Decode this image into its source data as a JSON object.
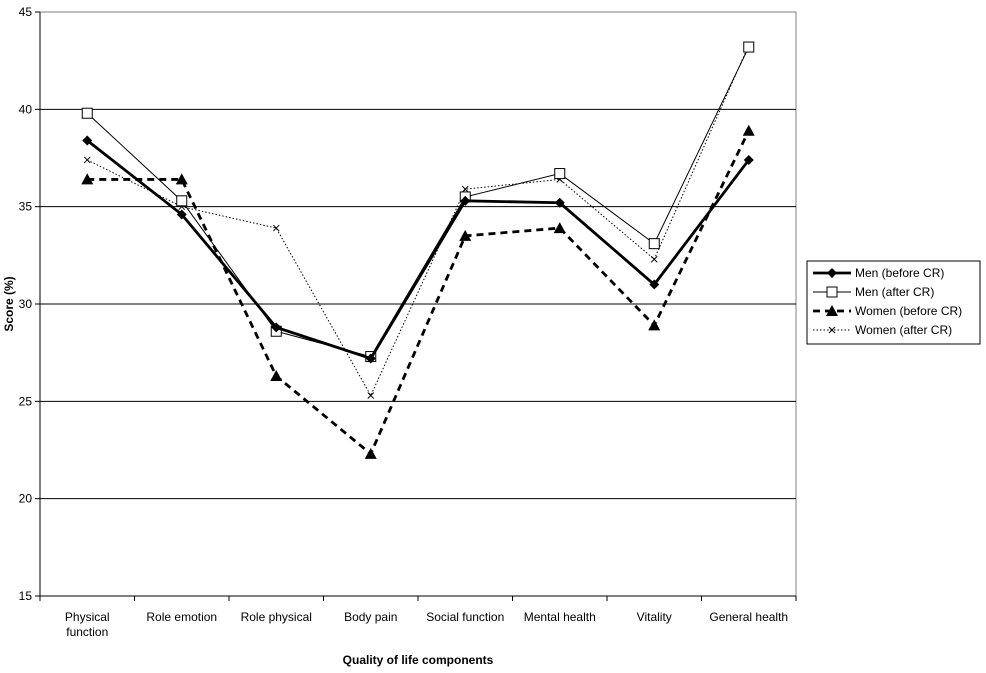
{
  "chart_data": {
    "type": "line",
    "title": "",
    "xlabel": "Quality of life components",
    "ylabel": "Score (%)",
    "ylim": [
      15,
      45
    ],
    "yticks": [
      15,
      20,
      25,
      30,
      35,
      40,
      45
    ],
    "grid": "horizontal",
    "legend_position": "right",
    "categories": [
      [
        "Physical",
        "function"
      ],
      [
        "Role emotion"
      ],
      [
        "Role physical"
      ],
      [
        "Body pain"
      ],
      [
        "Social function"
      ],
      [
        "Mental health"
      ],
      [
        "Vitality"
      ],
      [
        "General health"
      ]
    ],
    "series": [
      {
        "name": "Men (before CR)",
        "marker": "diamond",
        "line": "solid-thick",
        "color": "#000000",
        "values": [
          38.4,
          34.6,
          28.8,
          27.2,
          35.3,
          35.2,
          31.0,
          37.4
        ]
      },
      {
        "name": "Men (after CR)",
        "marker": "open-square",
        "line": "solid-thin",
        "color": "#000000",
        "values": [
          39.8,
          35.3,
          28.6,
          27.3,
          35.5,
          36.7,
          33.1,
          43.2
        ]
      },
      {
        "name": "Women (before CR)",
        "marker": "triangle",
        "line": "dashed-thick",
        "color": "#000000",
        "values": [
          36.4,
          36.4,
          26.3,
          22.3,
          33.5,
          33.9,
          28.9,
          38.9
        ]
      },
      {
        "name": "Women (after CR)",
        "marker": "x",
        "line": "dotted-thin",
        "color": "#000000",
        "values": [
          37.4,
          35.0,
          33.9,
          25.3,
          35.9,
          36.4,
          32.3,
          43.3
        ]
      }
    ]
  }
}
